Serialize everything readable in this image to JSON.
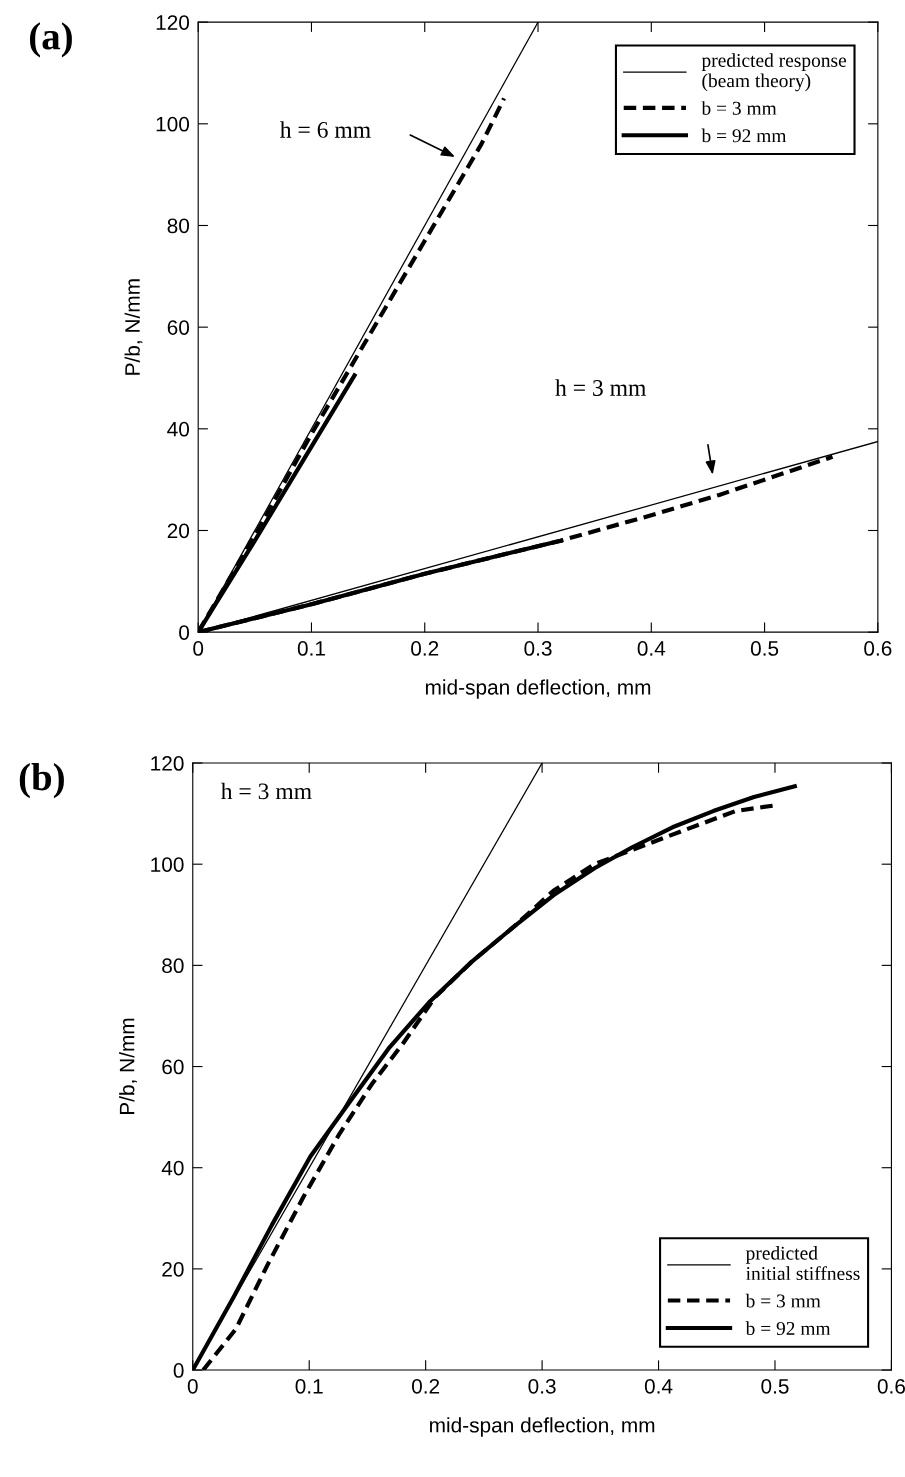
{
  "chart_data": [
    {
      "type": "line",
      "title": "(a)",
      "xlabel": "mid-span deflection, mm",
      "ylabel": "P/b, N/mm",
      "xlim": [
        0,
        0.6
      ],
      "ylim": [
        0,
        120
      ],
      "xticks": [
        0,
        0.1,
        0.2,
        0.3,
        0.4,
        0.5,
        0.6
      ],
      "yticks": [
        0,
        20,
        40,
        60,
        80,
        100,
        120
      ],
      "grid": false,
      "legend": "top right",
      "annotations": [
        "h = 6 mm",
        "h = 3 mm"
      ],
      "series": [
        {
          "name": "predicted response\n(beam theory)",
          "color": "#000000",
          "line_style": "solid",
          "x": [
            0,
            0.3
          ],
          "values": [
            0,
            120
          ]
        },
        {
          "name": "b = 3 mm",
          "color": "#000000",
          "line_style": "dashed",
          "x": [
            0,
            0.05,
            0.1,
            0.15,
            0.2,
            0.25,
            0.27
          ],
          "values": [
            0,
            19,
            39,
            58,
            77,
            96,
            105
          ]
        },
        {
          "name": "b = 92 mm",
          "color": "#000000",
          "line_style": "solid",
          "x": [
            0,
            0.05,
            0.1,
            0.138
          ],
          "values": [
            0,
            18,
            36.5,
            50.5
          ]
        },
        {
          "color": "#000000",
          "line_style": "solid",
          "x": [
            0,
            0.6
          ],
          "values": [
            0,
            37.5
          ]
        },
        {
          "color": "#000000",
          "line_style": "dashed",
          "x": [
            0,
            0.1,
            0.2,
            0.32,
            0.4,
            0.46,
            0.56
          ],
          "values": [
            0,
            5.5,
            11.5,
            18,
            23,
            27,
            34.5
          ]
        },
        {
          "color": "#000000",
          "line_style": "solid",
          "x": [
            0,
            0.1,
            0.2,
            0.32
          ],
          "values": [
            0,
            5.5,
            11.5,
            18
          ]
        }
      ]
    },
    {
      "type": "line",
      "title": "(b)",
      "xlabel": "mid-span deflection, mm",
      "ylabel": "P/b, N/mm",
      "xlim": [
        0,
        0.6
      ],
      "ylim": [
        0,
        120
      ],
      "xticks": [
        0,
        0.1,
        0.2,
        0.3,
        0.4,
        0.5,
        0.6
      ],
      "yticks": [
        0,
        20,
        40,
        60,
        80,
        100,
        120
      ],
      "grid": false,
      "legend": "bottom right",
      "annotations": [
        "h = 3 mm"
      ],
      "series": [
        {
          "name": "predicted\ninitial stiffness",
          "color": "#000000",
          "line_style": "solid",
          "x": [
            0,
            0.3
          ],
          "values": [
            0,
            120
          ]
        },
        {
          "name": "b = 3 mm",
          "color": "#000000",
          "line_style": "dashed",
          "x": [
            0.009,
            0.037,
            0.064,
            0.095,
            0.126,
            0.154,
            0.181,
            0.208,
            0.24,
            0.275,
            0.31,
            0.345,
            0.408,
            0.466,
            0.502
          ],
          "values": [
            0,
            8.1,
            20.7,
            34.2,
            46.7,
            56.6,
            64.7,
            73.7,
            80.8,
            87.5,
            94.8,
            100,
            105.5,
            110.5,
            111.7
          ]
        },
        {
          "name": "b = 92 mm",
          "color": "#000000",
          "line_style": "solid",
          "x": [
            0,
            0.035,
            0.068,
            0.101,
            0.136,
            0.169,
            0.203,
            0.24,
            0.275,
            0.31,
            0.345,
            0.377,
            0.412,
            0.447,
            0.482,
            0.517
          ],
          "values": [
            0,
            14.4,
            28.7,
            42.2,
            53.4,
            63.8,
            72.7,
            80.8,
            87.5,
            93.9,
            99.2,
            103.3,
            107.3,
            110.5,
            113.3,
            115.4
          ]
        }
      ]
    }
  ]
}
